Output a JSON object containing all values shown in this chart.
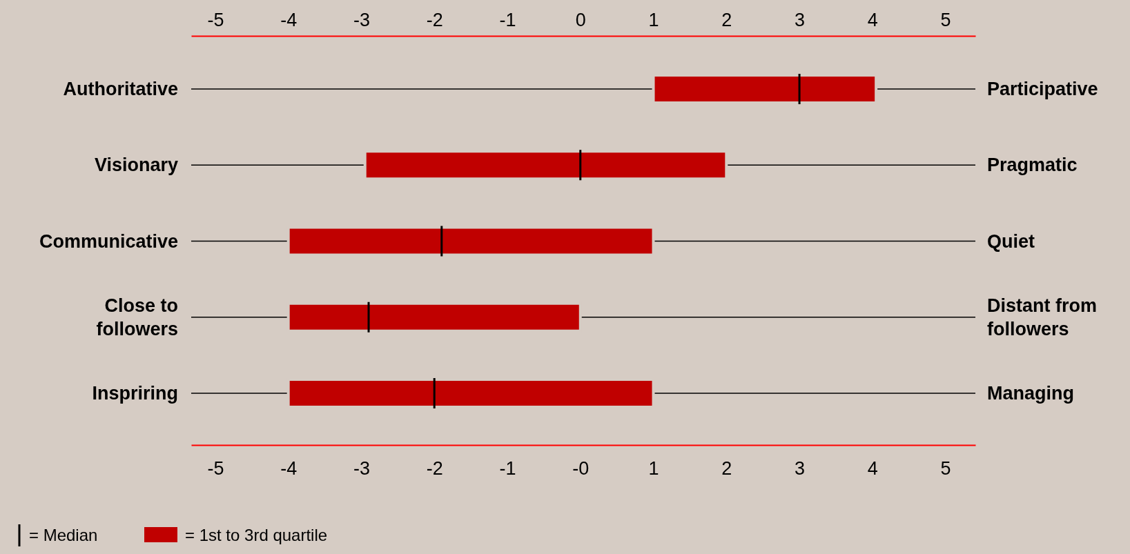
{
  "chart_data": {
    "type": "box",
    "orientation": "horizontal",
    "categories": [
      "Authoritative",
      "Visionary",
      "Communicative",
      "Close to followers",
      "Inspriring"
    ],
    "y2_categories": [
      "Participative",
      "Pragmatic",
      "Quiet",
      "Distant from followers",
      "Managing"
    ],
    "series": [
      {
        "name": "= 1st to 3rd quartile",
        "color": "#c00000",
        "boxes": [
          {
            "low": 1.0,
            "q1": 1.0,
            "median": 3.0,
            "q3": 4.05,
            "high": 4.05
          },
          {
            "low": -2.95,
            "q1": -2.95,
            "median": 0.0,
            "q3": 2.0,
            "high": 2.0
          },
          {
            "low": -4.0,
            "q1": -4.0,
            "median": -1.9,
            "q3": 1.0,
            "high": 1.0
          },
          {
            "low": -4.0,
            "q1": -4.0,
            "median": -2.9,
            "q3": 0.0,
            "high": 0.0
          },
          {
            "low": -4.0,
            "q1": -4.0,
            "median": -2.0,
            "q3": 1.0,
            "high": 1.0
          }
        ]
      }
    ],
    "xlim": [
      -5.33,
      5.41
    ],
    "xticks": [
      -5,
      -4,
      -3,
      -2,
      -1,
      {
        "value": 0,
        "label": "-0"
      },
      1,
      2,
      3,
      4,
      5
    ],
    "x2lim": [
      -5.33,
      5.41
    ],
    "x2ticks": [
      -5,
      -4,
      -3,
      -2,
      -1,
      0,
      1,
      2,
      3,
      4,
      5
    ],
    "grid": "y",
    "legend": "bottom left",
    "annotations": [
      "= Median"
    ]
  }
}
